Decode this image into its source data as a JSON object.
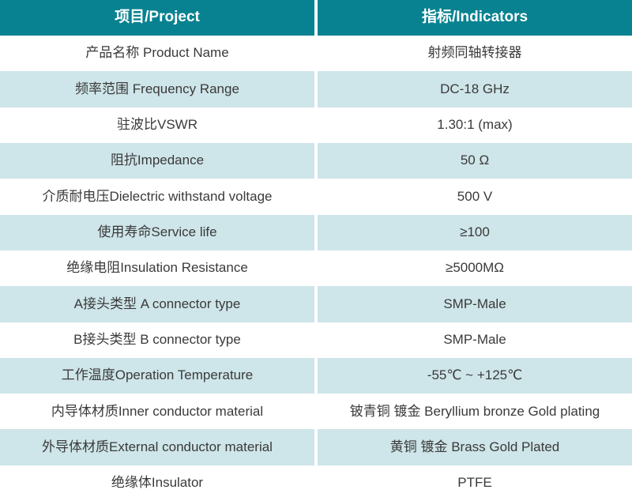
{
  "table": {
    "header": {
      "project": "项目/Project",
      "indicators": "指标/Indicators"
    },
    "rows": [
      {
        "label": "产品名称 Product Name",
        "value": "射频同轴转接器"
      },
      {
        "label": "频率范围 Frequency Range",
        "value": "DC-18 GHz"
      },
      {
        "label": "驻波比VSWR",
        "value": "1.30:1 (max)"
      },
      {
        "label": "阻抗Impedance",
        "value": "50 Ω"
      },
      {
        "label": "介质耐电压Dielectric withstand voltage",
        "value": "500 V"
      },
      {
        "label": "使用寿命Service life",
        "value": "≥100"
      },
      {
        "label": "绝缘电阻Insulation Resistance",
        "value": "≥5000MΩ"
      },
      {
        "label": "A接头类型 A connector type",
        "value": "SMP-Male"
      },
      {
        "label": "B接头类型 B connector type",
        "value": "SMP-Male"
      },
      {
        "label": "工作温度Operation Temperature",
        "value": "-55℃ ~ +125℃"
      },
      {
        "label": "内导体材质Inner conductor material",
        "value": "铍青铜 镀金 Beryllium bronze Gold plating"
      },
      {
        "label": "外导体材质External conductor material",
        "value": "黄铜 镀金 Brass Gold Plated"
      },
      {
        "label": "绝缘体Insulator",
        "value": "PTFE"
      }
    ]
  },
  "colors": {
    "header_bg": "#088291",
    "header_text": "#ffffff",
    "row_alt_bg": "#cee5e9",
    "row_bg": "#ffffff",
    "text": "#3a3a3a",
    "divider": "#ffffff"
  }
}
